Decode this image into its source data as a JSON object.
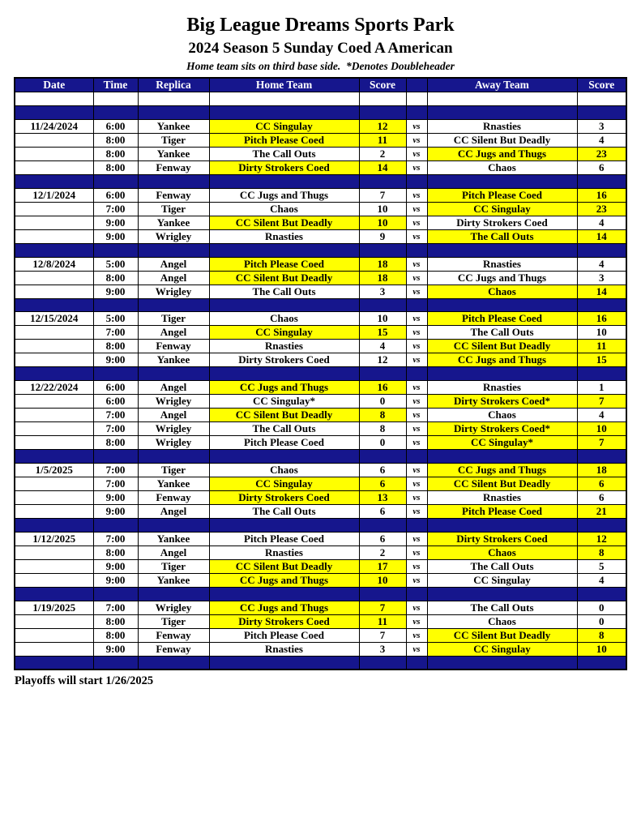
{
  "page": {
    "title": "Big League Dreams Sports Park",
    "subtitle": "2024 Season 5 Sunday Coed A American",
    "note": "Home team sits on third base side.  *Denotes Doubleheader",
    "footer": "Playoffs will start 1/26/2025"
  },
  "table": {
    "headers": {
      "date": "Date",
      "time": "Time",
      "replica": "Replica",
      "home": "Home Team",
      "home_score": "Score",
      "vs": "",
      "away": "Away Team",
      "away_score": "Score"
    },
    "vs_label": "vs",
    "colors": {
      "header_bg": "#16168d",
      "separator_bg": "#16168d",
      "highlight": "#ffff00",
      "border": "#000000",
      "header_text": "#ffffff"
    },
    "blocks": [
      {
        "date": "11/24/2024",
        "games": [
          {
            "time": "6:00",
            "replica": "Yankee",
            "home": "CC Singulay",
            "hs": "12",
            "away": "Rnasties",
            "as": "3",
            "win": "home"
          },
          {
            "time": "8:00",
            "replica": "Tiger",
            "home": "Pitch Please Coed",
            "hs": "11",
            "away": "CC Silent But Deadly",
            "as": "4",
            "win": "home"
          },
          {
            "time": "8:00",
            "replica": "Yankee",
            "home": "The Call Outs",
            "hs": "2",
            "away": "CC Jugs and Thugs",
            "as": "23",
            "win": "away"
          },
          {
            "time": "8:00",
            "replica": "Fenway",
            "home": "Dirty Strokers Coed",
            "hs": "14",
            "away": "Chaos",
            "as": "6",
            "win": "home"
          }
        ]
      },
      {
        "date": "12/1/2024",
        "games": [
          {
            "time": "6:00",
            "replica": "Fenway",
            "home": "CC Jugs and Thugs",
            "hs": "7",
            "away": "Pitch Please Coed",
            "as": "16",
            "win": "away"
          },
          {
            "time": "7:00",
            "replica": "Tiger",
            "home": "Chaos",
            "hs": "10",
            "away": "CC Singulay",
            "as": "23",
            "win": "away"
          },
          {
            "time": "9:00",
            "replica": "Yankee",
            "home": "CC Silent But Deadly",
            "hs": "10",
            "away": "Dirty Strokers Coed",
            "as": "4",
            "win": "home"
          },
          {
            "time": "9:00",
            "replica": "Wrigley",
            "home": "Rnasties",
            "hs": "9",
            "away": "The Call Outs",
            "as": "14",
            "win": "away"
          }
        ]
      },
      {
        "date": "12/8/2024",
        "games": [
          {
            "time": "5:00",
            "replica": "Angel",
            "home": "Pitch Please Coed",
            "hs": "18",
            "away": "Rnasties",
            "as": "4",
            "win": "home"
          },
          {
            "time": "8:00",
            "replica": "Angel",
            "home": "CC Silent But Deadly",
            "hs": "18",
            "away": "CC Jugs and Thugs",
            "as": "3",
            "win": "home"
          },
          {
            "time": "9:00",
            "replica": "Wrigley",
            "home": "The Call Outs",
            "hs": "3",
            "away": "Chaos",
            "as": "14",
            "win": "away"
          }
        ]
      },
      {
        "date": "12/15/2024",
        "games": [
          {
            "time": "5:00",
            "replica": "Tiger",
            "home": "Chaos",
            "hs": "10",
            "away": "Pitch Please Coed",
            "as": "16",
            "win": "away"
          },
          {
            "time": "7:00",
            "replica": "Angel",
            "home": "CC Singulay",
            "hs": "15",
            "away": "The Call Outs",
            "as": "10",
            "win": "home"
          },
          {
            "time": "8:00",
            "replica": "Fenway",
            "home": "Rnasties",
            "hs": "4",
            "away": "CC Silent But Deadly",
            "as": "11",
            "win": "away"
          },
          {
            "time": "9:00",
            "replica": "Yankee",
            "home": "Dirty Strokers Coed",
            "hs": "12",
            "away": "CC Jugs and Thugs",
            "as": "15",
            "win": "away"
          }
        ]
      },
      {
        "date": "12/22/2024",
        "games": [
          {
            "time": "6:00",
            "replica": "Angel",
            "home": "CC Jugs and Thugs",
            "hs": "16",
            "away": "Rnasties",
            "as": "1",
            "win": "home"
          },
          {
            "time": "6:00",
            "replica": "Wrigley",
            "home": "CC Singulay*",
            "hs": "0",
            "away": "Dirty Strokers Coed*",
            "as": "7",
            "win": "away"
          },
          {
            "time": "7:00",
            "replica": "Angel",
            "home": "CC Silent But Deadly",
            "hs": "8",
            "away": "Chaos",
            "as": "4",
            "win": "home"
          },
          {
            "time": "7:00",
            "replica": "Wrigley",
            "home": "The Call Outs",
            "hs": "8",
            "away": "Dirty Strokers Coed*",
            "as": "10",
            "win": "away"
          },
          {
            "time": "8:00",
            "replica": "Wrigley",
            "home": "Pitch Please Coed",
            "hs": "0",
            "away": "CC Singulay*",
            "as": "7",
            "win": "away"
          }
        ]
      },
      {
        "date": "1/5/2025",
        "games": [
          {
            "time": "7:00",
            "replica": "Tiger",
            "home": "Chaos",
            "hs": "6",
            "away": "CC Jugs and Thugs",
            "as": "18",
            "win": "away"
          },
          {
            "time": "7:00",
            "replica": "Yankee",
            "home": "CC Singulay",
            "hs": "6",
            "away": "CC Silent But Deadly",
            "as": "6",
            "win": "both"
          },
          {
            "time": "9:00",
            "replica": "Fenway",
            "home": "Dirty Strokers Coed",
            "hs": "13",
            "away": "Rnasties",
            "as": "6",
            "win": "home"
          },
          {
            "time": "9:00",
            "replica": "Angel",
            "home": "The Call Outs",
            "hs": "6",
            "away": "Pitch Please Coed",
            "as": "21",
            "win": "away"
          }
        ]
      },
      {
        "date": "1/12/2025",
        "games": [
          {
            "time": "7:00",
            "replica": "Yankee",
            "home": "Pitch Please Coed",
            "hs": "6",
            "away": "Dirty Strokers Coed",
            "as": "12",
            "win": "away"
          },
          {
            "time": "8:00",
            "replica": "Angel",
            "home": "Rnasties",
            "hs": "2",
            "away": "Chaos",
            "as": "8",
            "win": "away"
          },
          {
            "time": "9:00",
            "replica": "Tiger",
            "home": "CC Silent But Deadly",
            "hs": "17",
            "away": "The Call Outs",
            "as": "5",
            "win": "home"
          },
          {
            "time": "9:00",
            "replica": "Yankee",
            "home": "CC Jugs and Thugs",
            "hs": "10",
            "away": "CC Singulay",
            "as": "4",
            "win": "home"
          }
        ]
      },
      {
        "date": "1/19/2025",
        "games": [
          {
            "time": "7:00",
            "replica": "Wrigley",
            "home": "CC Jugs and Thugs",
            "hs": "7",
            "away": "The Call Outs",
            "as": "0",
            "win": "home"
          },
          {
            "time": "8:00",
            "replica": "Tiger",
            "home": "Dirty Strokers Coed",
            "hs": "11",
            "away": "Chaos",
            "as": "0",
            "win": "home"
          },
          {
            "time": "8:00",
            "replica": "Fenway",
            "home": "Pitch Please Coed",
            "hs": "7",
            "away": "CC Silent But Deadly",
            "as": "8",
            "win": "away"
          },
          {
            "time": "9:00",
            "replica": "Fenway",
            "home": "Rnasties",
            "hs": "3",
            "away": "CC Singulay",
            "as": "10",
            "win": "away"
          }
        ]
      }
    ]
  }
}
